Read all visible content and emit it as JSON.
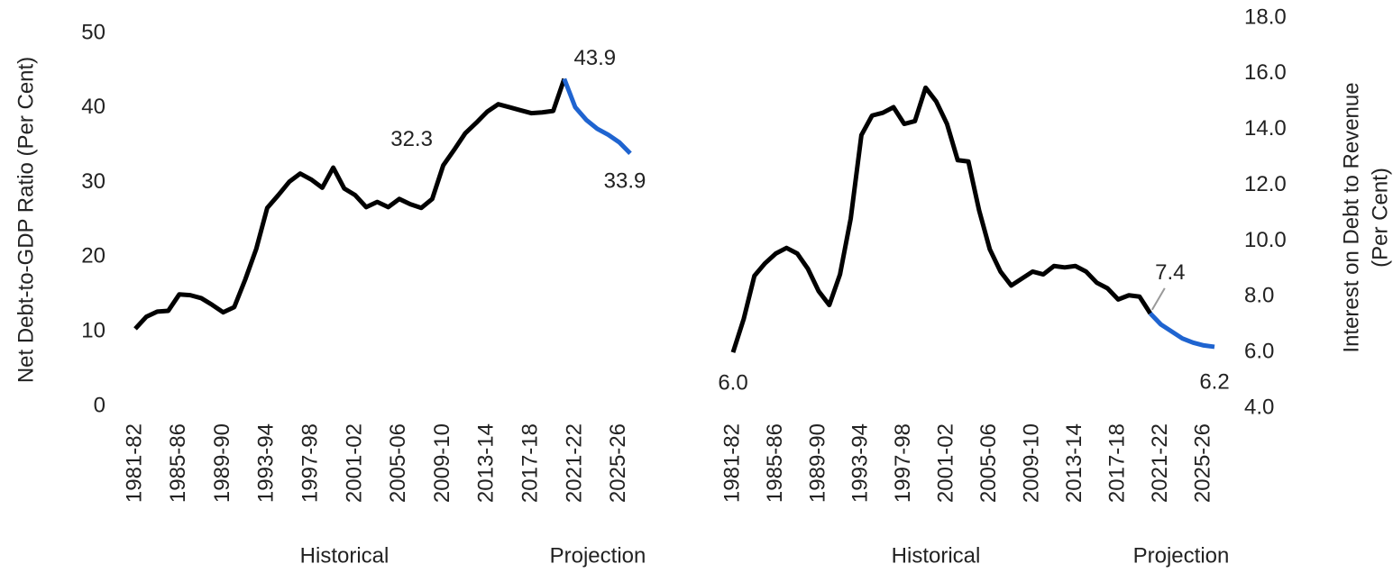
{
  "chart_data": [
    {
      "type": "line",
      "ylabel": "Net Debt-to-GDP Ratio (Per Cent)",
      "categories": [
        "1981-82",
        null,
        null,
        null,
        "1985-86",
        null,
        null,
        null,
        "1989-90",
        null,
        null,
        null,
        "1993-94",
        null,
        null,
        null,
        "1997-98",
        null,
        null,
        null,
        "2001-02",
        null,
        null,
        null,
        "2005-06",
        null,
        null,
        null,
        "2009-10",
        null,
        null,
        null,
        "2013-14",
        null,
        null,
        null,
        "2017-18",
        null,
        null,
        null,
        "2021-22",
        null,
        null,
        null,
        "2025-26",
        null
      ],
      "ylim": [
        0,
        50
      ],
      "yticks": [
        0,
        10,
        20,
        30,
        40,
        50
      ],
      "grid": false,
      "series": [
        {
          "name": "Historical",
          "color": "#000000",
          "values": [
            10.4,
            12.0,
            12.7,
            12.8,
            15.0,
            14.9,
            14.5,
            13.6,
            12.6,
            13.3,
            17.0,
            21.1,
            26.6,
            28.3,
            30.1,
            31.2,
            30.4,
            29.3,
            32.0,
            29.2,
            28.3,
            26.7,
            27.4,
            26.7,
            27.8,
            27.1,
            26.6,
            27.8,
            32.3,
            34.4,
            36.6,
            38.0,
            39.5,
            40.5,
            40.1,
            39.7,
            39.3,
            39.4,
            39.6,
            43.9,
            null,
            null,
            null,
            null,
            null,
            null
          ],
          "value_labels": [
            null,
            null,
            null,
            null,
            null,
            null,
            null,
            null,
            null,
            null,
            null,
            null,
            null,
            null,
            null,
            null,
            null,
            null,
            null,
            null,
            null,
            null,
            null,
            null,
            null,
            null,
            null,
            null,
            "32.3",
            null,
            null,
            null,
            null,
            null,
            null,
            null,
            null,
            null,
            null,
            null,
            null,
            null,
            null,
            null,
            null,
            null
          ]
        },
        {
          "name": "Projection",
          "color": "#1f64d0",
          "values": [
            null,
            null,
            null,
            null,
            null,
            null,
            null,
            null,
            null,
            null,
            null,
            null,
            null,
            null,
            null,
            null,
            null,
            null,
            null,
            null,
            null,
            null,
            null,
            null,
            null,
            null,
            null,
            null,
            null,
            null,
            null,
            null,
            null,
            null,
            null,
            null,
            null,
            null,
            null,
            43.9,
            40.1,
            38.4,
            37.2,
            36.4,
            35.4,
            33.9
          ],
          "value_labels": [
            null,
            null,
            null,
            null,
            null,
            null,
            null,
            null,
            null,
            null,
            null,
            null,
            null,
            null,
            null,
            null,
            null,
            null,
            null,
            null,
            null,
            null,
            null,
            null,
            null,
            null,
            null,
            null,
            null,
            null,
            null,
            null,
            null,
            null,
            null,
            null,
            null,
            null,
            null,
            "43.9",
            null,
            null,
            null,
            null,
            null,
            "33.9"
          ]
        }
      ]
    },
    {
      "type": "line",
      "y2label": [
        "Interest on Debt to Revenue",
        "(Per Cent)"
      ],
      "categories": [
        "1981-82",
        null,
        null,
        null,
        "1985-86",
        null,
        null,
        null,
        "1989-90",
        null,
        null,
        null,
        "1993-94",
        null,
        null,
        null,
        "1997-98",
        null,
        null,
        null,
        "2001-02",
        null,
        null,
        null,
        "2005-06",
        null,
        null,
        null,
        "2009-10",
        null,
        null,
        null,
        "2013-14",
        null,
        null,
        null,
        "2017-18",
        null,
        null,
        null,
        "2021-22",
        null,
        null,
        null,
        "2025-26",
        null
      ],
      "y2lim": [
        4,
        18
      ],
      "y2ticks": [
        {
          "value": 4,
          "label": "4.0"
        },
        {
          "value": 6,
          "label": "6.0"
        },
        {
          "value": 8,
          "label": "8.0"
        },
        {
          "value": 10,
          "label": "10.0"
        },
        {
          "value": 12,
          "label": "12.0"
        },
        {
          "value": 14,
          "label": "14.0"
        },
        {
          "value": 16,
          "label": "16.0"
        },
        {
          "value": 18,
          "label": "18.0"
        }
      ],
      "grid": false,
      "series": [
        {
          "name": "Historical",
          "color": "#000000",
          "axis": "y2",
          "values": [
            6.0,
            7.2,
            8.75,
            9.2,
            9.55,
            9.75,
            9.55,
            9.0,
            8.2,
            7.7,
            8.8,
            10.8,
            13.8,
            14.5,
            14.6,
            14.8,
            14.2,
            14.3,
            15.5,
            15.0,
            14.2,
            12.9,
            12.85,
            11.1,
            9.7,
            8.9,
            8.4,
            8.65,
            8.9,
            8.8,
            9.1,
            9.05,
            9.1,
            8.9,
            8.5,
            8.3,
            7.9,
            8.05,
            8.0,
            7.4,
            null,
            null,
            null,
            null,
            null,
            null
          ],
          "value_labels": [
            "6.0",
            null,
            null,
            null,
            null,
            null,
            null,
            null,
            null,
            null,
            null,
            null,
            null,
            null,
            null,
            null,
            null,
            null,
            null,
            null,
            null,
            null,
            null,
            null,
            null,
            null,
            null,
            null,
            null,
            null,
            null,
            null,
            null,
            null,
            null,
            null,
            null,
            null,
            null,
            null,
            null,
            null,
            null,
            null,
            null,
            null
          ]
        },
        {
          "name": "Projection",
          "color": "#1f64d0",
          "axis": "y2",
          "values": [
            null,
            null,
            null,
            null,
            null,
            null,
            null,
            null,
            null,
            null,
            null,
            null,
            null,
            null,
            null,
            null,
            null,
            null,
            null,
            null,
            null,
            null,
            null,
            null,
            null,
            null,
            null,
            null,
            null,
            null,
            null,
            null,
            null,
            null,
            null,
            null,
            null,
            null,
            null,
            7.4,
            7.0,
            6.75,
            6.5,
            6.35,
            6.25,
            6.2
          ],
          "value_labels": [
            null,
            null,
            null,
            null,
            null,
            null,
            null,
            null,
            null,
            null,
            null,
            null,
            null,
            null,
            null,
            null,
            null,
            null,
            null,
            null,
            null,
            null,
            null,
            null,
            null,
            null,
            null,
            null,
            null,
            null,
            null,
            null,
            null,
            null,
            null,
            null,
            null,
            null,
            null,
            "7.4",
            null,
            null,
            null,
            null,
            null,
            "6.2"
          ]
        }
      ]
    }
  ]
}
